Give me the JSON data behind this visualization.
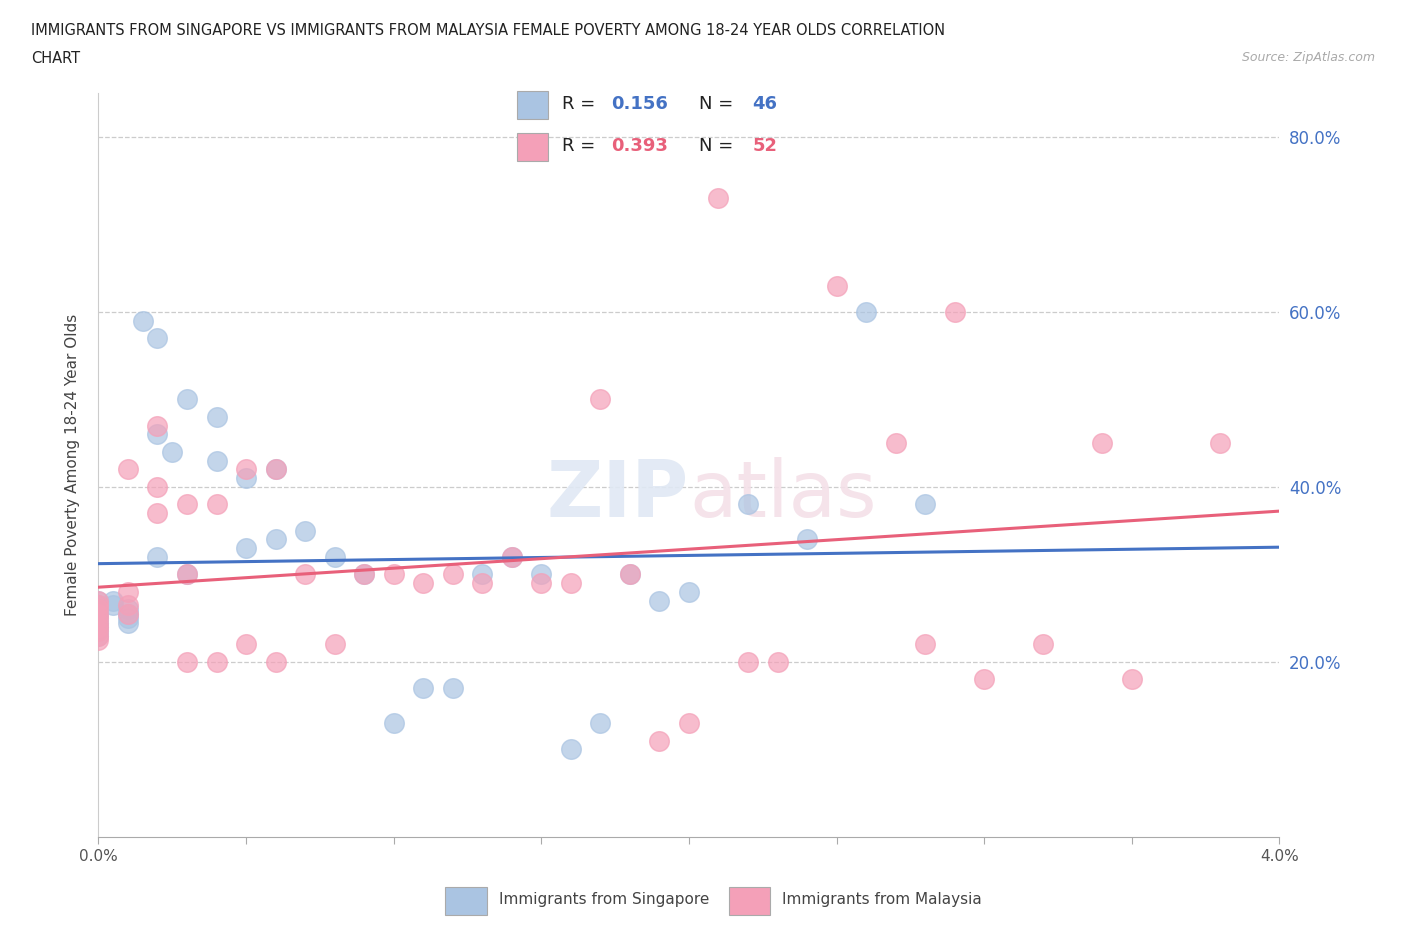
{
  "title_line1": "IMMIGRANTS FROM SINGAPORE VS IMMIGRANTS FROM MALAYSIA FEMALE POVERTY AMONG 18-24 YEAR OLDS CORRELATION",
  "title_line2": "CHART",
  "source": "Source: ZipAtlas.com",
  "ylabel": "Female Poverty Among 18-24 Year Olds",
  "xlim": [
    0.0,
    0.04
  ],
  "ylim": [
    0.0,
    0.85
  ],
  "ytick_vals": [
    0.0,
    0.2,
    0.4,
    0.6,
    0.8
  ],
  "ytick_labels_right": [
    "",
    "20.0%",
    "40.0%",
    "60.0%",
    "80.0%"
  ],
  "singapore_color": "#aac4e2",
  "malaysia_color": "#f4a0b8",
  "singapore_line_color": "#4472c4",
  "malaysia_line_color": "#e8607a",
  "R_singapore": "0.156",
  "N_singapore": "46",
  "R_malaysia": "0.393",
  "N_malaysia": "52",
  "legend_label_singapore": "Immigrants from Singapore",
  "legend_label_malaysia": "Immigrants from Malaysia",
  "singapore_x": [
    0.0,
    0.0,
    0.0,
    0.0,
    0.0,
    0.0,
    0.0,
    0.0,
    0.0,
    0.0005,
    0.0005,
    0.001,
    0.001,
    0.001,
    0.001,
    0.0015,
    0.002,
    0.002,
    0.002,
    0.0025,
    0.003,
    0.003,
    0.004,
    0.004,
    0.005,
    0.005,
    0.006,
    0.006,
    0.007,
    0.008,
    0.009,
    0.01,
    0.011,
    0.012,
    0.013,
    0.014,
    0.015,
    0.016,
    0.017,
    0.018,
    0.019,
    0.02,
    0.022,
    0.024,
    0.026,
    0.028
  ],
  "singapore_y": [
    0.27,
    0.265,
    0.26,
    0.255,
    0.25,
    0.245,
    0.24,
    0.235,
    0.23,
    0.27,
    0.265,
    0.26,
    0.255,
    0.25,
    0.245,
    0.59,
    0.57,
    0.46,
    0.32,
    0.44,
    0.5,
    0.3,
    0.48,
    0.43,
    0.41,
    0.33,
    0.42,
    0.34,
    0.35,
    0.32,
    0.3,
    0.13,
    0.17,
    0.17,
    0.3,
    0.32,
    0.3,
    0.1,
    0.13,
    0.3,
    0.27,
    0.28,
    0.38,
    0.34,
    0.6,
    0.38
  ],
  "malaysia_x": [
    0.0,
    0.0,
    0.0,
    0.0,
    0.0,
    0.0,
    0.0,
    0.0,
    0.0,
    0.0,
    0.001,
    0.001,
    0.001,
    0.001,
    0.002,
    0.002,
    0.002,
    0.003,
    0.003,
    0.003,
    0.004,
    0.004,
    0.005,
    0.005,
    0.006,
    0.006,
    0.007,
    0.008,
    0.009,
    0.01,
    0.011,
    0.012,
    0.013,
    0.014,
    0.015,
    0.016,
    0.017,
    0.018,
    0.019,
    0.02,
    0.021,
    0.022,
    0.023,
    0.025,
    0.027,
    0.028,
    0.029,
    0.03,
    0.032,
    0.034,
    0.035,
    0.038
  ],
  "malaysia_y": [
    0.27,
    0.265,
    0.26,
    0.255,
    0.25,
    0.245,
    0.24,
    0.235,
    0.23,
    0.225,
    0.28,
    0.265,
    0.255,
    0.42,
    0.37,
    0.4,
    0.47,
    0.2,
    0.38,
    0.3,
    0.2,
    0.38,
    0.22,
    0.42,
    0.2,
    0.42,
    0.3,
    0.22,
    0.3,
    0.3,
    0.29,
    0.3,
    0.29,
    0.32,
    0.29,
    0.29,
    0.5,
    0.3,
    0.11,
    0.13,
    0.73,
    0.2,
    0.2,
    0.63,
    0.45,
    0.22,
    0.6,
    0.18,
    0.22,
    0.45,
    0.18,
    0.45
  ]
}
